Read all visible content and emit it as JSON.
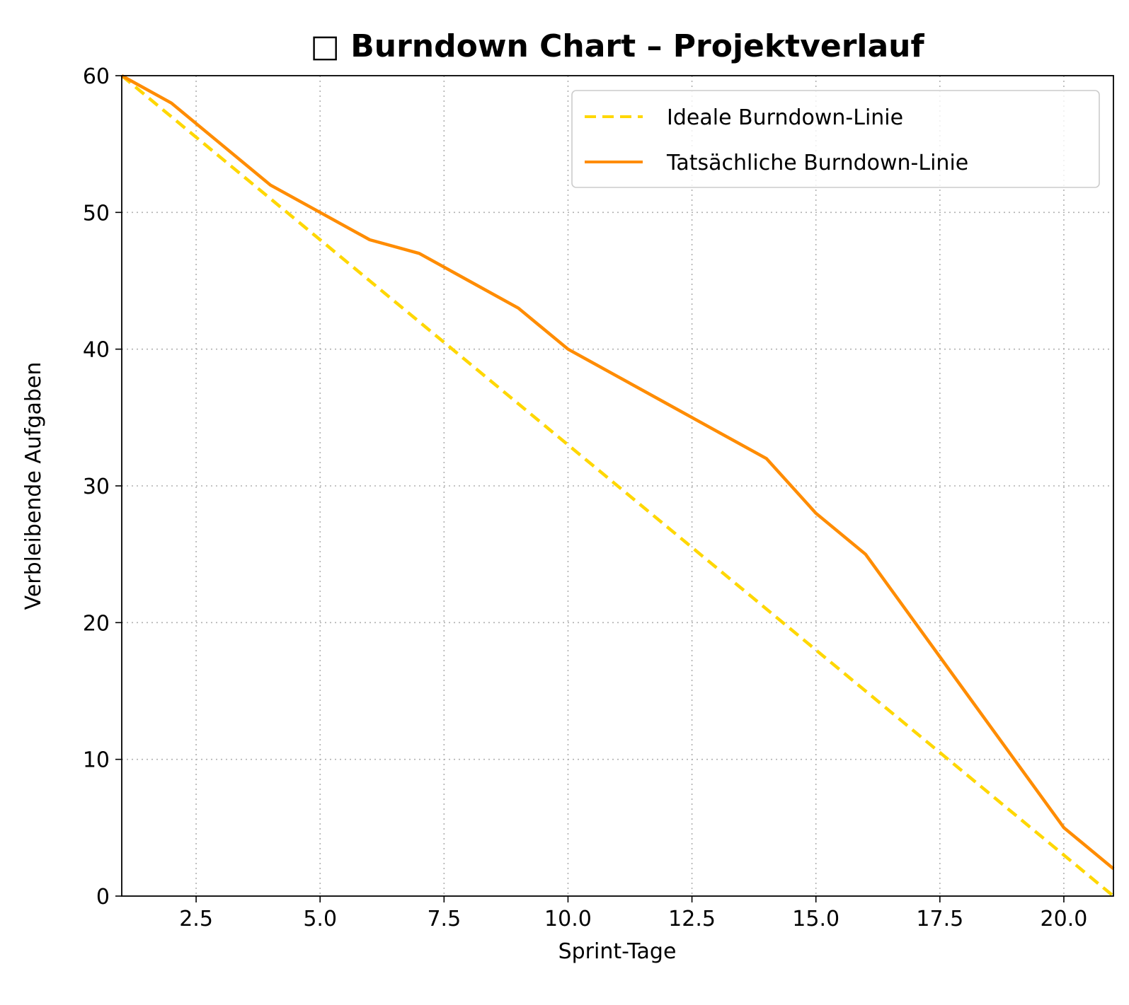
{
  "chart_data": {
    "type": "line",
    "title": "□ Burndown Chart – Projektverlauf",
    "xlabel": "Sprint-Tage",
    "ylabel": "Verbleibende Aufgaben",
    "xlim": [
      1,
      21
    ],
    "ylim": [
      0,
      60
    ],
    "x_ticks": [
      2.5,
      5.0,
      7.5,
      10.0,
      12.5,
      15.0,
      17.5,
      20.0
    ],
    "x_tick_labels": [
      "2.5",
      "5.0",
      "7.5",
      "10.0",
      "12.5",
      "15.0",
      "17.5",
      "20.0"
    ],
    "y_ticks": [
      0,
      10,
      20,
      30,
      40,
      50,
      60
    ],
    "y_tick_labels": [
      "0",
      "10",
      "20",
      "30",
      "40",
      "50",
      "60"
    ],
    "grid": true,
    "legend_position": "top-right",
    "series": [
      {
        "name": "Ideale Burndown-Linie",
        "color": "#FFD700",
        "style": "dashed",
        "x": [
          1,
          21
        ],
        "values": [
          60,
          0
        ]
      },
      {
        "name": "Tatsächliche Burndown-Linie",
        "color": "#FF8C00",
        "style": "solid",
        "x": [
          1,
          2,
          3,
          4,
          5,
          6,
          7,
          8,
          9,
          10,
          11,
          12,
          13,
          14,
          15,
          16,
          17,
          18,
          19,
          20,
          21
        ],
        "values": [
          60,
          58,
          55,
          52,
          50,
          48,
          47,
          45,
          43,
          40,
          38,
          36,
          34,
          32,
          28,
          25,
          20,
          15,
          10,
          5,
          2
        ]
      }
    ]
  }
}
